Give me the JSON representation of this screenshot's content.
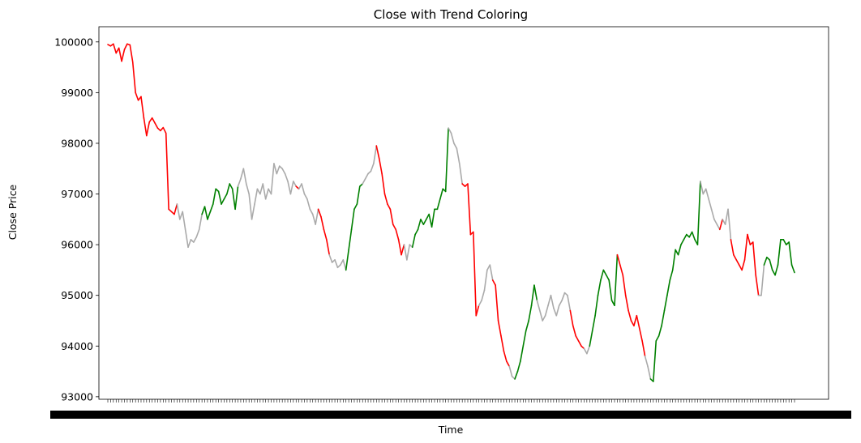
{
  "chart_data": {
    "type": "line",
    "title": "Close with Trend Coloring",
    "xlabel": "Time",
    "ylabel": "Close Price",
    "ylim": [
      92950,
      100300
    ],
    "yticks": [
      93000,
      94000,
      95000,
      96000,
      97000,
      98000,
      99000,
      100000
    ],
    "grid": false,
    "legend": "none",
    "x_tick_note": "x tick labels are overlapping timestamps starting with '20' and ending with '00'",
    "trend_colors": {
      "up": "#008000",
      "down": "#ff0000",
      "flat": "#aaaaaa"
    },
    "values": [
      99950,
      99920,
      99960,
      99780,
      99880,
      99620,
      99850,
      99960,
      99940,
      99600,
      99000,
      98850,
      98920,
      98500,
      98150,
      98420,
      98500,
      98400,
      98300,
      98250,
      98310,
      98200,
      96700,
      96650,
      96600,
      96800,
      96500,
      96650,
      96300,
      95950,
      96100,
      96050,
      96150,
      96300,
      96600,
      96750,
      96500,
      96650,
      96800,
      97100,
      97050,
      96800,
      96900,
      97000,
      97200,
      97100,
      96700,
      97150,
      97300,
      97500,
      97200,
      97000,
      96500,
      96800,
      97100,
      97000,
      97200,
      96900,
      97100,
      97000,
      97600,
      97400,
      97550,
      97500,
      97400,
      97250,
      97000,
      97250,
      97150,
      97100,
      97200,
      97000,
      96900,
      96700,
      96600,
      96400,
      96700,
      96550,
      96300,
      96100,
      95800,
      95650,
      95700,
      95550,
      95600,
      95700,
      95500,
      95900,
      96300,
      96700,
      96800,
      97150,
      97200,
      97300,
      97400,
      97450,
      97600,
      97950,
      97700,
      97400,
      97000,
      96800,
      96700,
      96400,
      96300,
      96100,
      95800,
      96000,
      95700,
      96000,
      95950,
      96200,
      96300,
      96500,
      96400,
      96500,
      96600,
      96350,
      96700,
      96700,
      96900,
      97100,
      97050,
      98300,
      98200,
      98000,
      97900,
      97600,
      97200,
      97150,
      97200,
      96200,
      96250,
      94600,
      94800,
      94900,
      95100,
      95500,
      95600,
      95300,
      95200,
      94500,
      94200,
      93900,
      93700,
      93600,
      93400,
      93350,
      93500,
      93700,
      94000,
      94300,
      94500,
      94800,
      95200,
      94900,
      94700,
      94500,
      94600,
      94800,
      95000,
      94750,
      94600,
      94800,
      94900,
      95050,
      95000,
      94700,
      94400,
      94200,
      94100,
      94000,
      93950,
      93850,
      94000,
      94300,
      94600,
      95000,
      95300,
      95500,
      95400,
      95300,
      94900,
      94800,
      95800,
      95600,
      95400,
      95000,
      94700,
      94500,
      94400,
      94600,
      94350,
      94100,
      93800,
      93600,
      93350,
      93300,
      94100,
      94200,
      94400,
      94700,
      95000,
      95300,
      95500,
      95900,
      95800,
      96000,
      96100,
      96200,
      96150,
      96250,
      96100,
      96000,
      97250,
      97000,
      97100,
      96900,
      96700,
      96500,
      96400,
      96300,
      96500,
      96400,
      96700,
      96100,
      95800,
      95700,
      95600,
      95500,
      95700,
      96200,
      96000,
      96050,
      95400,
      95000,
      95000,
      95600,
      95750,
      95700,
      95500,
      95400,
      95600,
      96100,
      96100,
      96000,
      96050,
      95600,
      95450
    ],
    "trends": [
      "down",
      "down",
      "down",
      "down",
      "down",
      "down",
      "down",
      "down",
      "down",
      "down",
      "down",
      "down",
      "down",
      "down",
      "down",
      "down",
      "down",
      "down",
      "down",
      "down",
      "down",
      "down",
      "down",
      "down",
      "down",
      "flat",
      "flat",
      "flat",
      "flat",
      "flat",
      "flat",
      "flat",
      "flat",
      "flat",
      "up",
      "up",
      "up",
      "up",
      "up",
      "up",
      "up",
      "up",
      "up",
      "up",
      "up",
      "up",
      "up",
      "flat",
      "flat",
      "flat",
      "flat",
      "flat",
      "flat",
      "flat",
      "flat",
      "flat",
      "flat",
      "flat",
      "flat",
      "flat",
      "flat",
      "flat",
      "flat",
      "flat",
      "flat",
      "flat",
      "flat",
      "flat",
      "down",
      "flat",
      "flat",
      "flat",
      "flat",
      "flat",
      "flat",
      "flat",
      "down",
      "down",
      "down",
      "down",
      "flat",
      "flat",
      "flat",
      "flat",
      "flat",
      "flat",
      "up",
      "up",
      "up",
      "up",
      "up",
      "up",
      "flat",
      "flat",
      "flat",
      "flat",
      "flat",
      "down",
      "down",
      "down",
      "down",
      "down",
      "down",
      "down",
      "down",
      "down",
      "down",
      "flat",
      "flat",
      "flat",
      "up",
      "up",
      "up",
      "up",
      "up",
      "up",
      "up",
      "up",
      "up",
      "up",
      "up",
      "up",
      "up",
      "flat",
      "flat",
      "flat",
      "flat",
      "flat",
      "down",
      "down",
      "down",
      "down",
      "down",
      "down",
      "flat",
      "flat",
      "flat",
      "flat",
      "flat",
      "down",
      "down",
      "down",
      "down",
      "down",
      "down",
      "flat",
      "flat",
      "up",
      "up",
      "up",
      "up",
      "up",
      "up",
      "up",
      "up",
      "flat",
      "flat",
      "flat",
      "flat",
      "flat",
      "flat",
      "flat",
      "flat",
      "flat",
      "flat",
      "flat",
      "flat",
      "down",
      "down",
      "down",
      "down",
      "down",
      "flat",
      "flat",
      "up",
      "up",
      "up",
      "up",
      "up",
      "up",
      "up",
      "up",
      "up",
      "up",
      "down",
      "down",
      "down",
      "down",
      "down",
      "down",
      "down",
      "down",
      "down",
      "down",
      "flat",
      "flat",
      "up",
      "up",
      "up",
      "up",
      "up",
      "up",
      "up",
      "up",
      "up",
      "up",
      "up",
      "up",
      "up",
      "up",
      "up",
      "up",
      "up",
      "up",
      "flat",
      "flat",
      "flat",
      "flat",
      "flat",
      "flat",
      "flat",
      "down",
      "flat",
      "flat",
      "flat",
      "down",
      "down",
      "down",
      "down",
      "down",
      "down",
      "down",
      "down",
      "down",
      "down",
      "flat",
      "flat",
      "up",
      "up",
      "up",
      "up",
      "up",
      "up",
      "up",
      "up",
      "up",
      "up",
      "up",
      "up"
    ]
  }
}
